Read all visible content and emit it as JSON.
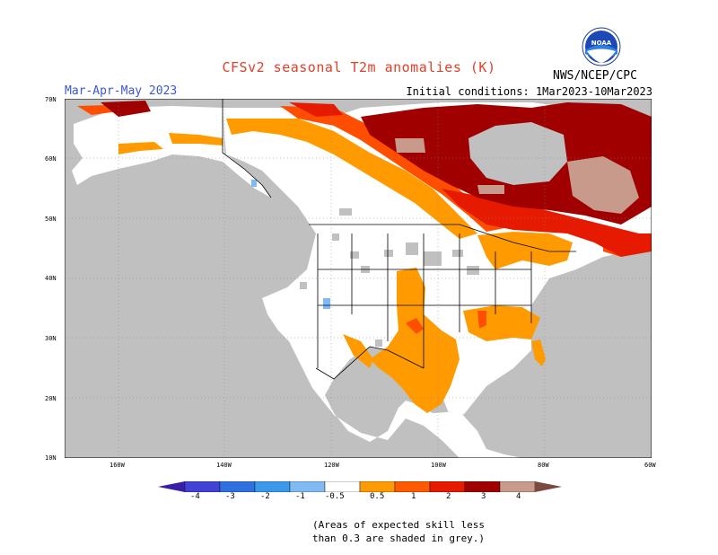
{
  "header": {
    "title": "CFSv2 seasonal T2m anomalies (K)",
    "period": "Mar-Apr-May 2023",
    "initial_conditions": "Initial conditions: 1Mar2023-10Mar2023",
    "agency": "NWS/NCEP/CPC",
    "logo_text": "NOAA"
  },
  "map": {
    "lat_labels": [
      "70N",
      "60N",
      "50N",
      "40N",
      "30N",
      "20N",
      "10N"
    ],
    "lon_labels": [
      "160W",
      "140W",
      "120W",
      "100W",
      "80W",
      "60W"
    ]
  },
  "colorbar": {
    "labels": [
      "-4",
      "-3",
      "-2",
      "-1",
      "-0.5",
      "0.5",
      "1",
      "2",
      "3",
      "4"
    ],
    "colors": [
      "#3a1ea8",
      "#4242d6",
      "#2f70e0",
      "#3a99ea",
      "#7fbbf2",
      "#ffffff",
      "#ff9b00",
      "#ff5a00",
      "#e51a00",
      "#a00000",
      "#c79a8c",
      "#7a4a40"
    ]
  },
  "note": {
    "line1": "(Areas of expected skill less",
    "line2": "than 0.3 are shaded in grey.)"
  },
  "palette": {
    "grey": "#c0c0c0",
    "orange": "#ff9b00",
    "red_orange": "#ff4e00",
    "red": "#e51a00",
    "dark_red": "#a00000",
    "brown": "#c79a8c",
    "blue": "#7fbbf2"
  }
}
